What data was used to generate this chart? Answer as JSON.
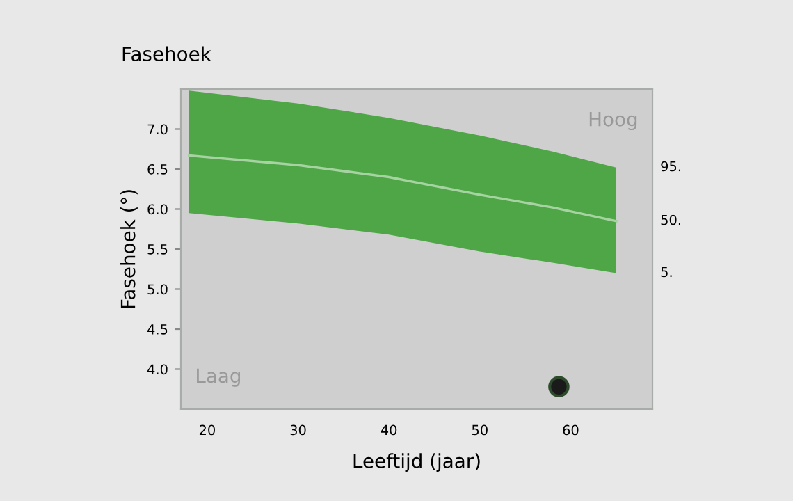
{
  "chart_data": {
    "type": "line",
    "title": "Fasehoek",
    "xlabel": "Leeftijd (jaar)",
    "ylabel": "Fasehoek (°)",
    "xlim": [
      17.1,
      69
    ],
    "ylim": [
      3.5,
      7.5
    ],
    "xticks": [
      20,
      30,
      40,
      50,
      60
    ],
    "yticks": [
      {
        "value": 4,
        "label": "4.0"
      },
      4.5,
      {
        "value": 5,
        "label": "5.0"
      },
      5.5,
      {
        "value": 6,
        "label": "6.0"
      },
      6.5,
      {
        "value": 7,
        "label": "7.0"
      }
    ],
    "series": [
      {
        "color": "#4ea646",
        "x": [
          18,
          30,
          40,
          50,
          58,
          65
        ],
        "values": [
          6.67,
          6.55,
          6.4,
          6.18,
          6.02,
          5.85
        ],
        "lower": [
          5.95,
          5.82,
          5.68,
          5.47,
          5.33,
          5.2
        ],
        "upper": [
          7.48,
          7.32,
          7.14,
          6.92,
          6.72,
          6.52
        ]
      },
      {
        "type": "scatter",
        "color": "#1a1a1a",
        "x": [
          58.7
        ],
        "values": [
          3.78
        ]
      }
    ],
    "annotations": [
      "Laag",
      "Hoog",
      "95.",
      "50.",
      "5."
    ]
  }
}
